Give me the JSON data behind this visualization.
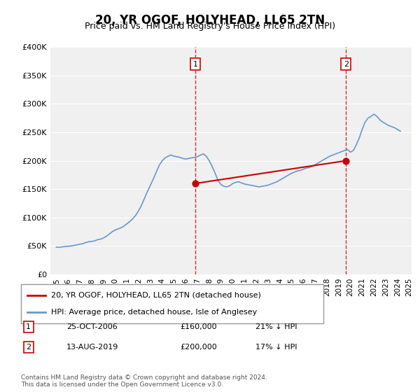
{
  "title": "20, YR OGOF, HOLYHEAD, LL65 2TN",
  "subtitle": "Price paid vs. HM Land Registry's House Price Index (HPI)",
  "xlabel": "",
  "ylabel": "",
  "ylim": [
    0,
    400000
  ],
  "yticks": [
    0,
    50000,
    100000,
    150000,
    200000,
    250000,
    300000,
    350000,
    400000
  ],
  "ytick_labels": [
    "£0",
    "£50K",
    "£100K",
    "£150K",
    "£200K",
    "£250K",
    "£300K",
    "£350K",
    "£400K"
  ],
  "background_color": "#ffffff",
  "plot_bg_color": "#f0f0f0",
  "hpi_color": "#6699cc",
  "price_color": "#cc0000",
  "vline_color": "#cc0000",
  "transaction1": {
    "date_label": "25-OCT-2006",
    "price": 160000,
    "pct": "21%",
    "marker_x_year": 2006.82
  },
  "transaction2": {
    "date_label": "13-AUG-2019",
    "price": 200000,
    "pct": "17%",
    "marker_x_year": 2019.62
  },
  "legend_property": "20, YR OGOF, HOLYHEAD, LL65 2TN (detached house)",
  "legend_hpi": "HPI: Average price, detached house, Isle of Anglesey",
  "footnote": "Contains HM Land Registry data © Crown copyright and database right 2024.\nThis data is licensed under the Open Government Licence v3.0.",
  "hpi_years": [
    1995.0,
    1995.25,
    1995.5,
    1995.75,
    1996.0,
    1996.25,
    1996.5,
    1996.75,
    1997.0,
    1997.25,
    1997.5,
    1997.75,
    1998.0,
    1998.25,
    1998.5,
    1998.75,
    1999.0,
    1999.25,
    1999.5,
    1999.75,
    2000.0,
    2000.25,
    2000.5,
    2000.75,
    2001.0,
    2001.25,
    2001.5,
    2001.75,
    2002.0,
    2002.25,
    2002.5,
    2002.75,
    2003.0,
    2003.25,
    2003.5,
    2003.75,
    2004.0,
    2004.25,
    2004.5,
    2004.75,
    2005.0,
    2005.25,
    2005.5,
    2005.75,
    2006.0,
    2006.25,
    2006.5,
    2006.75,
    2007.0,
    2007.25,
    2007.5,
    2007.75,
    2008.0,
    2008.25,
    2008.5,
    2008.75,
    2009.0,
    2009.25,
    2009.5,
    2009.75,
    2010.0,
    2010.25,
    2010.5,
    2010.75,
    2011.0,
    2011.25,
    2011.5,
    2011.75,
    2012.0,
    2012.25,
    2012.5,
    2012.75,
    2013.0,
    2013.25,
    2013.5,
    2013.75,
    2014.0,
    2014.25,
    2014.5,
    2014.75,
    2015.0,
    2015.25,
    2015.5,
    2015.75,
    2016.0,
    2016.25,
    2016.5,
    2016.75,
    2017.0,
    2017.25,
    2017.5,
    2017.75,
    2018.0,
    2018.25,
    2018.5,
    2018.75,
    2019.0,
    2019.25,
    2019.5,
    2019.75,
    2020.0,
    2020.25,
    2020.5,
    2020.75,
    2021.0,
    2021.25,
    2021.5,
    2021.75,
    2022.0,
    2022.25,
    2022.5,
    2022.75,
    2023.0,
    2023.25,
    2023.5,
    2023.75,
    2024.0,
    2024.25
  ],
  "hpi_values": [
    48000,
    47500,
    48500,
    49000,
    49500,
    50000,
    51000,
    52000,
    53000,
    54000,
    56000,
    57500,
    58000,
    59000,
    61000,
    62000,
    64000,
    67000,
    71000,
    75000,
    78000,
    80000,
    82000,
    85000,
    89000,
    93000,
    98000,
    104000,
    112000,
    122000,
    134000,
    146000,
    157000,
    168000,
    180000,
    192000,
    200000,
    205000,
    208000,
    210000,
    208000,
    207000,
    206000,
    204000,
    203000,
    204000,
    205000,
    206000,
    207000,
    210000,
    212000,
    208000,
    200000,
    190000,
    178000,
    165000,
    158000,
    155000,
    154000,
    156000,
    160000,
    162000,
    163000,
    161000,
    159000,
    158000,
    157000,
    156000,
    155000,
    154000,
    155000,
    156000,
    157000,
    159000,
    161000,
    163000,
    166000,
    169000,
    172000,
    175000,
    178000,
    180000,
    182000,
    183000,
    185000,
    187000,
    188000,
    190000,
    193000,
    196000,
    199000,
    202000,
    205000,
    208000,
    210000,
    212000,
    214000,
    216000,
    218000,
    220000,
    215000,
    218000,
    228000,
    240000,
    255000,
    268000,
    275000,
    278000,
    282000,
    278000,
    272000,
    268000,
    265000,
    262000,
    260000,
    258000,
    255000,
    252000
  ],
  "price_years": [
    2006.82,
    2019.62
  ],
  "price_values": [
    160000,
    200000
  ],
  "xtick_years": [
    1995,
    1996,
    1997,
    1998,
    1999,
    2000,
    2001,
    2002,
    2003,
    2004,
    2005,
    2006,
    2007,
    2008,
    2009,
    2010,
    2011,
    2012,
    2013,
    2014,
    2015,
    2016,
    2017,
    2018,
    2019,
    2020,
    2021,
    2022,
    2023,
    2024,
    2025
  ]
}
